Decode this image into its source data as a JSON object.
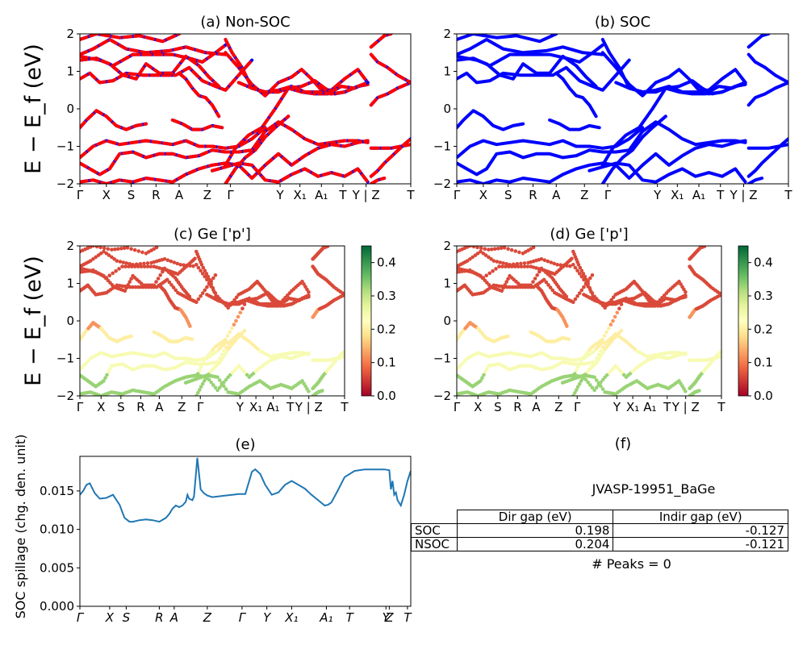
{
  "chart_data": [
    {
      "type": "line",
      "panel": "a",
      "title": "(a) Non-SOC",
      "ylabel": "E − E_f (eV)",
      "ylim": [
        -2,
        2
      ],
      "yticks": [
        "−2",
        "−1",
        "0",
        "1",
        "2"
      ],
      "xticks": [
        "Γ",
        "X",
        "S",
        "R",
        "A",
        "Z",
        "Γ",
        "Y",
        "X₁",
        "A₁",
        "T",
        "Y | Z",
        "T"
      ],
      "colors": {
        "spin_up": "#0000ff",
        "spin_down": "#ff0000"
      },
      "series": [
        {
          "x": [
            0,
            0.05,
            0.12,
            0.18,
            0.25,
            0.3
          ],
          "y": [
            1.85,
            2.0,
            1.9,
            1.95,
            1.8,
            2.0
          ]
        },
        {
          "x": [
            0,
            0.04,
            0.09,
            0.14,
            0.2,
            0.27,
            0.32,
            0.38,
            0.44
          ],
          "y": [
            1.45,
            1.6,
            1.85,
            1.6,
            1.5,
            1.55,
            1.65,
            1.5,
            1.45
          ]
        },
        {
          "x": [
            0,
            0.05,
            0.1,
            0.16,
            0.22,
            0.28,
            0.33,
            0.37,
            0.41,
            0.44
          ],
          "y": [
            1.3,
            1.35,
            1.15,
            1.45,
            1.45,
            1.45,
            1.35,
            1.25,
            1.5,
            1.7
          ]
        },
        {
          "x": [
            0,
            0.03,
            0.06,
            0.1,
            0.14,
            0.19,
            0.24,
            0.29,
            0.33,
            0.37,
            0.41,
            0.44,
            0.48,
            0.52
          ],
          "y": [
            0.8,
            0.95,
            0.7,
            0.75,
            0.95,
            0.9,
            0.9,
            0.9,
            1.1,
            0.75,
            0.6,
            0.5,
            0.9,
            1.3
          ]
        },
        {
          "x": [
            0,
            0.03,
            0.06,
            0.09,
            0.13,
            0.17,
            0.2,
            0.24,
            0.28,
            0.32,
            0.36,
            0.39,
            0.42
          ],
          "y": [
            1.4,
            1.35,
            1.3,
            1.2,
            0.9,
            0.8,
            1.2,
            0.95,
            0.95,
            1.4,
            1.15,
            0.85,
            0.6
          ]
        },
        {
          "x": [
            0.3,
            0.32,
            0.34,
            0.36,
            0.38,
            0.4,
            0.42
          ],
          "y": [
            0.95,
            0.8,
            0.55,
            0.35,
            0.3,
            0.1,
            -0.2
          ]
        },
        {
          "x": [
            0.44,
            0.48,
            0.52,
            0.56,
            0.6,
            0.64,
            0.67,
            0.7,
            0.73,
            0.76,
            0.8,
            0.84,
            0.87
          ],
          "y": [
            1.5,
            1.1,
            0.65,
            0.35,
            0.7,
            0.85,
            1.05,
            0.8,
            0.5,
            0.5,
            0.8,
            1.05,
            0.7
          ]
        },
        {
          "x": [
            0.44,
            0.47,
            0.51,
            0.55,
            0.59,
            0.63,
            0.67,
            0.71,
            0.74,
            0.77,
            0.8,
            0.84,
            0.87
          ],
          "y": [
            -1.5,
            -1.05,
            -0.7,
            -0.5,
            0.0,
            0.55,
            0.6,
            0.75,
            0.55,
            0.4,
            0.45,
            0.6,
            0.65
          ]
        },
        {
          "x": [
            0.44,
            0.46,
            0.49,
            0.52,
            0.56,
            0.6,
            0.63,
            0.67,
            0.71,
            0.75,
            0.79,
            0.83,
            0.87
          ],
          "y": [
            1.85,
            1.5,
            1.1,
            0.55,
            0.45,
            0.45,
            0.55,
            0.45,
            0.4,
            0.4,
            0.6,
            0.55,
            0.7
          ]
        },
        {
          "x": [
            0.48,
            0.52,
            0.56,
            0.6,
            0.64,
            0.68,
            0.72,
            0.76,
            0.8,
            0.84,
            0.87
          ],
          "y": [
            0.7,
            0.55,
            0.45,
            0.5,
            0.6,
            0.45,
            0.45,
            0.4,
            0.45,
            0.6,
            0.7
          ]
        },
        {
          "x": [
            0.44,
            0.47,
            0.5,
            0.53,
            0.56,
            0.59,
            0.63
          ],
          "y": [
            -2.0,
            -1.6,
            -1.3,
            -1.1,
            -0.75,
            -0.5,
            -0.2
          ]
        },
        {
          "x": [
            0,
            0.02,
            0.05,
            0.08,
            0.11,
            0.14,
            0.17,
            0.2
          ],
          "y": [
            -0.5,
            -0.3,
            -0.05,
            -0.2,
            -0.45,
            -0.55,
            -0.45,
            -0.4
          ]
        },
        {
          "x": [
            0,
            0.04,
            0.08,
            0.12,
            0.16,
            0.2,
            0.24,
            0.28,
            0.32,
            0.36,
            0.4,
            0.44,
            0.48,
            0.52,
            0.56
          ],
          "y": [
            -1.3,
            -1.0,
            -0.85,
            -0.95,
            -0.9,
            -0.85,
            -0.9,
            -0.95,
            -0.85,
            -1.0,
            -1.0,
            -1.05,
            -1.0,
            -0.8,
            -0.5
          ]
        },
        {
          "x": [
            0.28,
            0.31,
            0.34,
            0.37,
            0.4,
            0.43
          ],
          "y": [
            -0.3,
            -0.4,
            -0.55,
            -0.55,
            -0.45,
            -0.5
          ]
        },
        {
          "x": [
            0,
            0.03,
            0.06,
            0.09,
            0.12,
            0.16,
            0.2,
            0.24,
            0.28,
            0.32,
            0.36,
            0.4,
            0.44,
            0.48,
            0.52,
            0.56,
            0.6,
            0.64,
            0.68,
            0.72,
            0.76,
            0.8,
            0.84,
            0.87
          ],
          "y": [
            -1.45,
            -1.6,
            -1.75,
            -1.6,
            -1.2,
            -1.15,
            -1.3,
            -1.2,
            -1.2,
            -1.3,
            -1.25,
            -1.1,
            -1.15,
            -1.15,
            -1.1,
            -0.6,
            -0.35,
            -0.55,
            -0.8,
            -0.95,
            -0.9,
            -0.85,
            -0.85,
            -0.9
          ]
        },
        {
          "x": [
            0,
            0.04,
            0.08,
            0.12,
            0.16,
            0.2,
            0.24,
            0.28,
            0.32,
            0.36,
            0.4,
            0.44,
            0.48,
            0.52,
            0.56,
            0.6,
            0.64,
            0.68,
            0.72,
            0.76,
            0.8,
            0.84,
            0.87
          ],
          "y": [
            -1.95,
            -1.9,
            -2.0,
            -1.9,
            -1.95,
            -1.85,
            -1.9,
            -1.95,
            -1.75,
            -1.6,
            -1.5,
            -1.45,
            -1.5,
            -1.85,
            -1.5,
            -1.2,
            -1.5,
            -1.25,
            -1.05,
            -0.95,
            -1.0,
            -0.9,
            -0.85
          ]
        },
        {
          "x": [
            0.4,
            0.44,
            0.48,
            0.52,
            0.56,
            0.6,
            0.64,
            0.68,
            0.72,
            0.76,
            0.8,
            0.84,
            0.87
          ],
          "y": [
            -1.65,
            -1.55,
            -1.45,
            -1.5,
            -1.9,
            -1.95,
            -1.75,
            -1.6,
            -1.8,
            -1.7,
            -1.8,
            -1.6,
            -1.95
          ]
        },
        {
          "x": [
            0.88,
            0.9,
            0.92,
            0.94
          ],
          "y": [
            1.65,
            1.8,
            1.95,
            2.0
          ]
        },
        {
          "x": [
            0.88,
            0.9,
            0.93,
            0.96,
            1.0
          ],
          "y": [
            1.45,
            1.25,
            1.1,
            0.9,
            0.7
          ]
        },
        {
          "x": [
            0.88,
            0.9,
            0.93,
            0.96,
            1.0
          ],
          "y": [
            0.1,
            0.3,
            0.4,
            0.55,
            0.7
          ]
        },
        {
          "x": [
            0.88,
            0.91,
            0.94,
            0.97,
            1.0
          ],
          "y": [
            -1.05,
            -1.05,
            -1.05,
            -1.0,
            -0.95
          ]
        },
        {
          "x": [
            0.88,
            0.9,
            0.92,
            0.95,
            0.98,
            1.0
          ],
          "y": [
            -1.8,
            -1.65,
            -1.45,
            -1.2,
            -0.95,
            -0.8
          ]
        },
        {
          "x": [
            0.88,
            0.9,
            0.92
          ],
          "y": [
            -2.0,
            -1.9,
            -1.85
          ]
        }
      ]
    },
    {
      "type": "line",
      "panel": "b",
      "title": "(b) SOC",
      "ylim": [
        -2,
        2
      ],
      "yticks": [
        "−2",
        "−1",
        "0",
        "1",
        "2"
      ],
      "xticks": [
        "Γ",
        "X",
        "S",
        "R",
        "A",
        "Z",
        "Γ",
        "Y",
        "X₁",
        "A₁",
        "T",
        "Y | Z",
        "T"
      ],
      "colors": {
        "band": "#0000ff"
      }
    },
    {
      "type": "scatter",
      "panel": "c",
      "title": "(c)  Ge ['p']",
      "ylabel": "E − E_f (eV)",
      "ylim": [
        -2,
        2
      ],
      "yticks": [
        "−2",
        "−1",
        "0",
        "1",
        "2"
      ],
      "xticks": [
        "Γ",
        "X",
        "S",
        "R",
        "A",
        "Z",
        "Γ",
        "Y",
        "X₁",
        "A₁",
        "T",
        "Y | Z",
        "T"
      ],
      "colorbar": {
        "min": 0.0,
        "max": 0.45,
        "ticks": [
          "0.0",
          "0.1",
          "0.2",
          "0.3",
          "0.4"
        ],
        "colormap": "RdYlGn"
      }
    },
    {
      "type": "scatter",
      "panel": "d",
      "title": "(d) Ge ['p']",
      "ylim": [
        -2,
        2
      ],
      "yticks": [
        "−2",
        "−1",
        "0",
        "1",
        "2"
      ],
      "xticks": [
        "Γ",
        "X",
        "S",
        "R",
        "A",
        "Z",
        "Γ",
        "Y",
        "X₁",
        "A₁",
        "T",
        "Y | Z",
        "T"
      ],
      "colorbar": {
        "min": 0.0,
        "max": 0.45,
        "ticks": [
          "0.0",
          "0.1",
          "0.2",
          "0.3",
          "0.4"
        ],
        "colormap": "RdYlGn"
      }
    },
    {
      "type": "line",
      "panel": "e",
      "title": "(e)",
      "ylabel": "SOC spillage (chg. den. unit)",
      "ylim": [
        0,
        0.0195
      ],
      "yticks": [
        "0.000",
        "0.005",
        "0.010",
        "0.015"
      ],
      "xticks": [
        "Γ",
        "X",
        "S",
        "R",
        "A",
        "Z",
        "Γ",
        "Y",
        "X₁",
        "A₁",
        "T",
        "Y",
        "Z",
        "T"
      ],
      "colors": {
        "line": "#1f77b4"
      },
      "x": [
        0,
        0.01,
        0.02,
        0.03,
        0.045,
        0.06,
        0.08,
        0.1,
        0.12,
        0.135,
        0.15,
        0.16,
        0.18,
        0.2,
        0.22,
        0.24,
        0.26,
        0.27,
        0.28,
        0.29,
        0.3,
        0.31,
        0.32,
        0.325,
        0.33,
        0.34,
        0.345,
        0.355,
        0.365,
        0.375,
        0.385,
        0.4,
        0.42,
        0.44,
        0.46,
        0.48,
        0.5,
        0.52,
        0.53,
        0.545,
        0.56,
        0.58,
        0.6,
        0.62,
        0.64,
        0.66,
        0.68,
        0.7,
        0.72,
        0.74,
        0.75,
        0.76,
        0.78,
        0.8,
        0.83,
        0.86,
        0.88,
        0.9,
        0.92,
        0.935,
        0.94,
        0.945,
        0.95,
        0.955,
        0.96,
        0.97,
        0.98,
        0.99,
        1.0
      ],
      "y": [
        0.0145,
        0.015,
        0.0158,
        0.016,
        0.0147,
        0.014,
        0.0141,
        0.0145,
        0.0132,
        0.0115,
        0.011,
        0.011,
        0.0112,
        0.0113,
        0.0112,
        0.011,
        0.0115,
        0.012,
        0.0127,
        0.0131,
        0.0129,
        0.0131,
        0.0136,
        0.0145,
        0.014,
        0.0138,
        0.0143,
        0.0193,
        0.0152,
        0.0147,
        0.0144,
        0.0142,
        0.0143,
        0.0144,
        0.0145,
        0.0146,
        0.0146,
        0.0175,
        0.0178,
        0.0172,
        0.0158,
        0.0145,
        0.0148,
        0.0158,
        0.0163,
        0.0158,
        0.0153,
        0.0145,
        0.0138,
        0.0131,
        0.0132,
        0.0135,
        0.0151,
        0.0168,
        0.0176,
        0.0178,
        0.0178,
        0.0178,
        0.0178,
        0.0177,
        0.0152,
        0.0163,
        0.0145,
        0.0148,
        0.0138,
        0.0131,
        0.0145,
        0.0163,
        0.0176
      ]
    }
  ],
  "panel_f": {
    "title": "(f)",
    "material": "JVASP-19951_BaGe",
    "columns": [
      "Dir gap (eV)",
      "Indir gap (eV)"
    ],
    "rows": [
      {
        "label": "SOC",
        "dir": "0.198",
        "indir": "-0.127"
      },
      {
        "label": "NSOC",
        "dir": "0.204",
        "indir": "-0.121"
      }
    ],
    "peaks_text": "# Peaks = 0"
  }
}
